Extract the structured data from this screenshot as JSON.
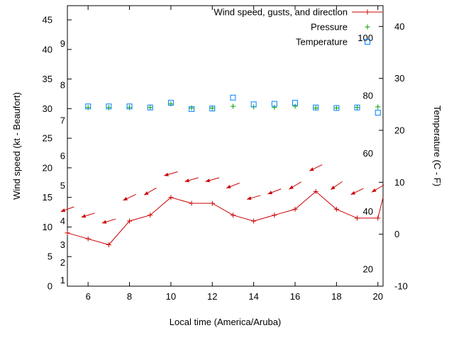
{
  "chart_data": {
    "type": "line",
    "title": "",
    "xlabel": "Local time (America/Aruba)",
    "ylabel_left": "Wind speed (kt - Beaufort)",
    "ylabel_right": "Temperature (C - F)",
    "xlim": [
      5,
      20.25
    ],
    "x_ticks": [
      6,
      8,
      10,
      12,
      14,
      16,
      18,
      20
    ],
    "ylim_left": [
      0,
      47.4
    ],
    "y_ticks_left": [
      0,
      5,
      10,
      15,
      20,
      25,
      30,
      35,
      40,
      45
    ],
    "ylim_right": [
      -10,
      44
    ],
    "y_ticks_right": [
      -10,
      0,
      10,
      20,
      30,
      40
    ],
    "grid": false,
    "legend_position": "top-right-inside",
    "beaufort_scale_labels": [
      {
        "label": "1",
        "kt": 1
      },
      {
        "label": "2",
        "kt": 4
      },
      {
        "label": "3",
        "kt": 7
      },
      {
        "label": "4",
        "kt": 11
      },
      {
        "label": "5",
        "kt": 17
      },
      {
        "label": "6",
        "kt": 22
      },
      {
        "label": "7",
        "kt": 28
      },
      {
        "label": "8",
        "kt": 34
      },
      {
        "label": "9",
        "kt": 41
      }
    ],
    "fahrenheit_scale_labels": [
      {
        "label": "20",
        "c": -6.7
      },
      {
        "label": "40",
        "c": 4.4
      },
      {
        "label": "60",
        "c": 15.6
      },
      {
        "label": "80",
        "c": 26.7
      },
      {
        "label": "100",
        "c": 37.8
      }
    ],
    "legend": [
      {
        "label": "Wind speed, gusts, and direction",
        "color": "#cc0000",
        "marker": "line-plus"
      },
      {
        "label": "Pressure",
        "color": "#00a000",
        "marker": "plus"
      },
      {
        "label": "Temperature",
        "color": "#0080ff",
        "marker": "square"
      }
    ],
    "series": {
      "wind_speed_kt": {
        "axis": "left",
        "color": "#cc0000",
        "x": [
          5,
          6,
          7,
          8,
          9,
          10,
          11,
          12,
          13,
          14,
          15,
          16,
          17,
          18,
          19,
          20,
          20.25
        ],
        "y": [
          9,
          8,
          7,
          11,
          12,
          15,
          14,
          14,
          12,
          11,
          12,
          13,
          16,
          13,
          11.5,
          11.5,
          15
        ]
      },
      "wind_gust_direction_arrows": {
        "axis": "left",
        "color": "#cc0000",
        "points": [
          {
            "x": 5,
            "kt": 13,
            "dir_deg": 200
          },
          {
            "x": 6,
            "kt": 12,
            "dir_deg": 197
          },
          {
            "x": 7,
            "kt": 11,
            "dir_deg": 197
          },
          {
            "x": 8,
            "kt": 15,
            "dir_deg": 205
          },
          {
            "x": 9,
            "kt": 16,
            "dir_deg": 210
          },
          {
            "x": 10,
            "kt": 19,
            "dir_deg": 196
          },
          {
            "x": 11,
            "kt": 18,
            "dir_deg": 196
          },
          {
            "x": 12,
            "kt": 18,
            "dir_deg": 196
          },
          {
            "x": 13,
            "kt": 17,
            "dir_deg": 201
          },
          {
            "x": 14,
            "kt": 15,
            "dir_deg": 196
          },
          {
            "x": 15,
            "kt": 16,
            "dir_deg": 201
          },
          {
            "x": 16,
            "kt": 17,
            "dir_deg": 211
          },
          {
            "x": 17,
            "kt": 20,
            "dir_deg": 206
          },
          {
            "x": 18,
            "kt": 17,
            "dir_deg": 215
          },
          {
            "x": 19,
            "kt": 16,
            "dir_deg": 206
          },
          {
            "x": 20,
            "kt": 16.5,
            "dir_deg": 211
          }
        ]
      },
      "pressure": {
        "axis": "left",
        "color": "#00a000",
        "x": [
          6,
          7,
          8,
          9,
          10,
          11,
          12,
          13,
          14,
          15,
          16,
          17,
          18,
          19,
          20
        ],
        "y": [
          30.2,
          30.2,
          30.2,
          30.2,
          30.8,
          30.1,
          30.1,
          30.4,
          30.3,
          30.2,
          30.4,
          30.1,
          30.1,
          30.2,
          30.3
        ]
      },
      "temperature_c": {
        "axis": "right",
        "color": "#0080ff",
        "x": [
          6,
          7,
          8,
          9,
          10,
          11,
          12,
          13,
          14,
          15,
          16,
          17,
          18,
          19,
          20
        ],
        "y": [
          24.6,
          24.6,
          24.6,
          24.4,
          25.3,
          24.1,
          24.2,
          26.3,
          25.0,
          25.1,
          25.3,
          24.4,
          24.3,
          24.4,
          23.4
        ]
      }
    }
  }
}
